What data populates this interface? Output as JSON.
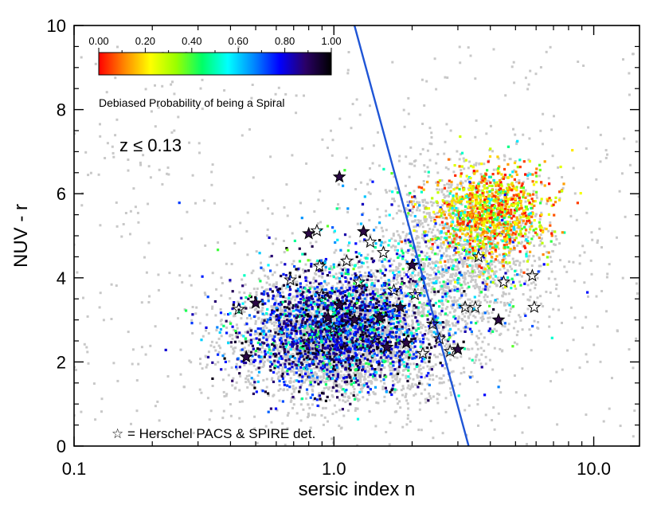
{
  "chart_data": {
    "type": "scatter",
    "title": "",
    "xlabel": "sersic index n",
    "ylabel": "NUV - r",
    "xscale": "log",
    "xlim": [
      0.1,
      15
    ],
    "ylim": [
      0,
      10
    ],
    "x_ticks": [
      0.1,
      1.0,
      10.0
    ],
    "x_tick_labels": [
      "0.1",
      "1.0",
      "10.0"
    ],
    "y_ticks": [
      0,
      2,
      4,
      6,
      8,
      10
    ],
    "y_tick_labels": [
      "0",
      "2",
      "4",
      "6",
      "8",
      "10"
    ],
    "colorbar": {
      "label": "Debiased Probability of being a Spiral",
      "ticks": [
        0.0,
        0.2,
        0.4,
        0.6,
        0.8,
        1.0
      ],
      "tick_labels": [
        "0.00",
        "0.20",
        "0.40",
        "0.60",
        "0.80",
        "1.00"
      ],
      "colormap": "rainbow-reversed",
      "colors": [
        "#ff0000",
        "#ff8800",
        "#ffff00",
        "#99ff00",
        "#00ff66",
        "#00ffff",
        "#0088ff",
        "#0000ff",
        "#2a0066",
        "#000000"
      ]
    },
    "annotation": "z ≤ 0.13",
    "legend": "☆ = Herschel PACS & SPIRE det.",
    "divider_line": {
      "points": [
        [
          1.2,
          10.0
        ],
        [
          3.3,
          0.0
        ]
      ],
      "color": "#1f55d6"
    },
    "series": [
      {
        "name": "all galaxies (grey background)",
        "color": "#c8c8c8",
        "description": "dense cloud, mostly n 0.4-4, NUV-r 1-4, extending to n~10, NUV-r~7"
      },
      {
        "name": "spiral-probability coloured points",
        "blue_cloud_center": {
          "n": 1.0,
          "nuv_r": 2.7,
          "p_spiral": 0.9
        },
        "red_sequence_center": {
          "n": 4.0,
          "nuv_r": 5.5,
          "p_spiral": 0.1
        }
      },
      {
        "name": "Herschel detections",
        "marker": "star",
        "points": [
          {
            "x": 1.05,
            "y": 6.4,
            "filled": true
          },
          {
            "x": 0.43,
            "y": 3.25,
            "filled": false
          },
          {
            "x": 0.5,
            "y": 3.4,
            "filled": true
          },
          {
            "x": 0.46,
            "y": 2.12,
            "filled": true
          },
          {
            "x": 0.68,
            "y": 3.95,
            "filled": false
          },
          {
            "x": 0.8,
            "y": 5.05,
            "filled": true
          },
          {
            "x": 0.86,
            "y": 5.12,
            "filled": false
          },
          {
            "x": 0.88,
            "y": 4.28,
            "filled": false
          },
          {
            "x": 0.9,
            "y": 3.6,
            "filled": false
          },
          {
            "x": 0.95,
            "y": 3.05,
            "filled": true
          },
          {
            "x": 1.0,
            "y": 2.8,
            "filled": false
          },
          {
            "x": 1.05,
            "y": 3.35,
            "filled": true
          },
          {
            "x": 1.12,
            "y": 4.4,
            "filled": false
          },
          {
            "x": 1.2,
            "y": 3.0,
            "filled": true
          },
          {
            "x": 1.25,
            "y": 3.9,
            "filled": false
          },
          {
            "x": 1.3,
            "y": 5.1,
            "filled": true
          },
          {
            "x": 1.38,
            "y": 4.85,
            "filled": false
          },
          {
            "x": 1.45,
            "y": 2.55,
            "filled": false
          },
          {
            "x": 1.5,
            "y": 3.05,
            "filled": true
          },
          {
            "x": 1.55,
            "y": 4.6,
            "filled": false
          },
          {
            "x": 1.6,
            "y": 2.35,
            "filled": true
          },
          {
            "x": 1.7,
            "y": 3.7,
            "filled": false
          },
          {
            "x": 1.8,
            "y": 3.3,
            "filled": true
          },
          {
            "x": 1.9,
            "y": 2.45,
            "filled": true
          },
          {
            "x": 2.0,
            "y": 4.3,
            "filled": true
          },
          {
            "x": 2.05,
            "y": 3.6,
            "filled": false
          },
          {
            "x": 2.2,
            "y": 2.2,
            "filled": false
          },
          {
            "x": 2.4,
            "y": 2.9,
            "filled": false
          },
          {
            "x": 2.55,
            "y": 2.55,
            "filled": false
          },
          {
            "x": 2.8,
            "y": 2.25,
            "filled": false
          },
          {
            "x": 3.0,
            "y": 2.3,
            "filled": true
          },
          {
            "x": 3.2,
            "y": 3.3,
            "filled": false
          },
          {
            "x": 3.5,
            "y": 3.3,
            "filled": false
          },
          {
            "x": 3.6,
            "y": 4.5,
            "filled": false
          },
          {
            "x": 4.3,
            "y": 3.0,
            "filled": true
          },
          {
            "x": 4.5,
            "y": 3.9,
            "filled": false
          },
          {
            "x": 5.8,
            "y": 4.05,
            "filled": false
          },
          {
            "x": 5.9,
            "y": 3.3,
            "filled": false
          }
        ]
      }
    ]
  }
}
